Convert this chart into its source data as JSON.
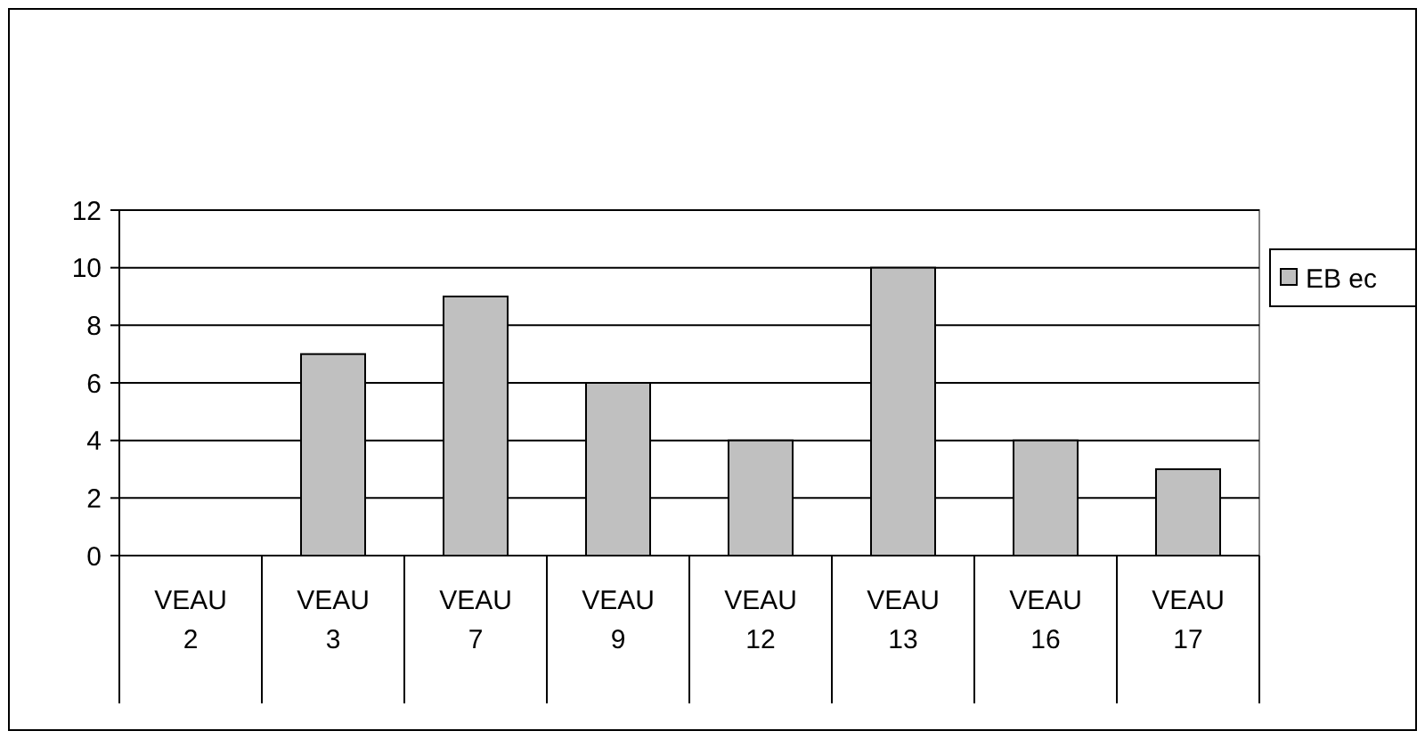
{
  "chart_data": {
    "type": "bar",
    "categories": [
      "VEAU 2",
      "VEAU 3",
      "VEAU 7",
      "VEAU 9",
      "VEAU 12",
      "VEAU 13",
      "VEAU 16",
      "VEAU 17"
    ],
    "series": [
      {
        "name": "EB ec",
        "color": "#c0c0c0",
        "values": [
          0,
          7,
          9,
          6,
          4,
          10,
          4,
          3
        ]
      }
    ],
    "ylim": [
      0,
      12
    ],
    "yticks": [
      0,
      2,
      4,
      6,
      8,
      10,
      12
    ],
    "grid": "y",
    "legend": "right"
  }
}
